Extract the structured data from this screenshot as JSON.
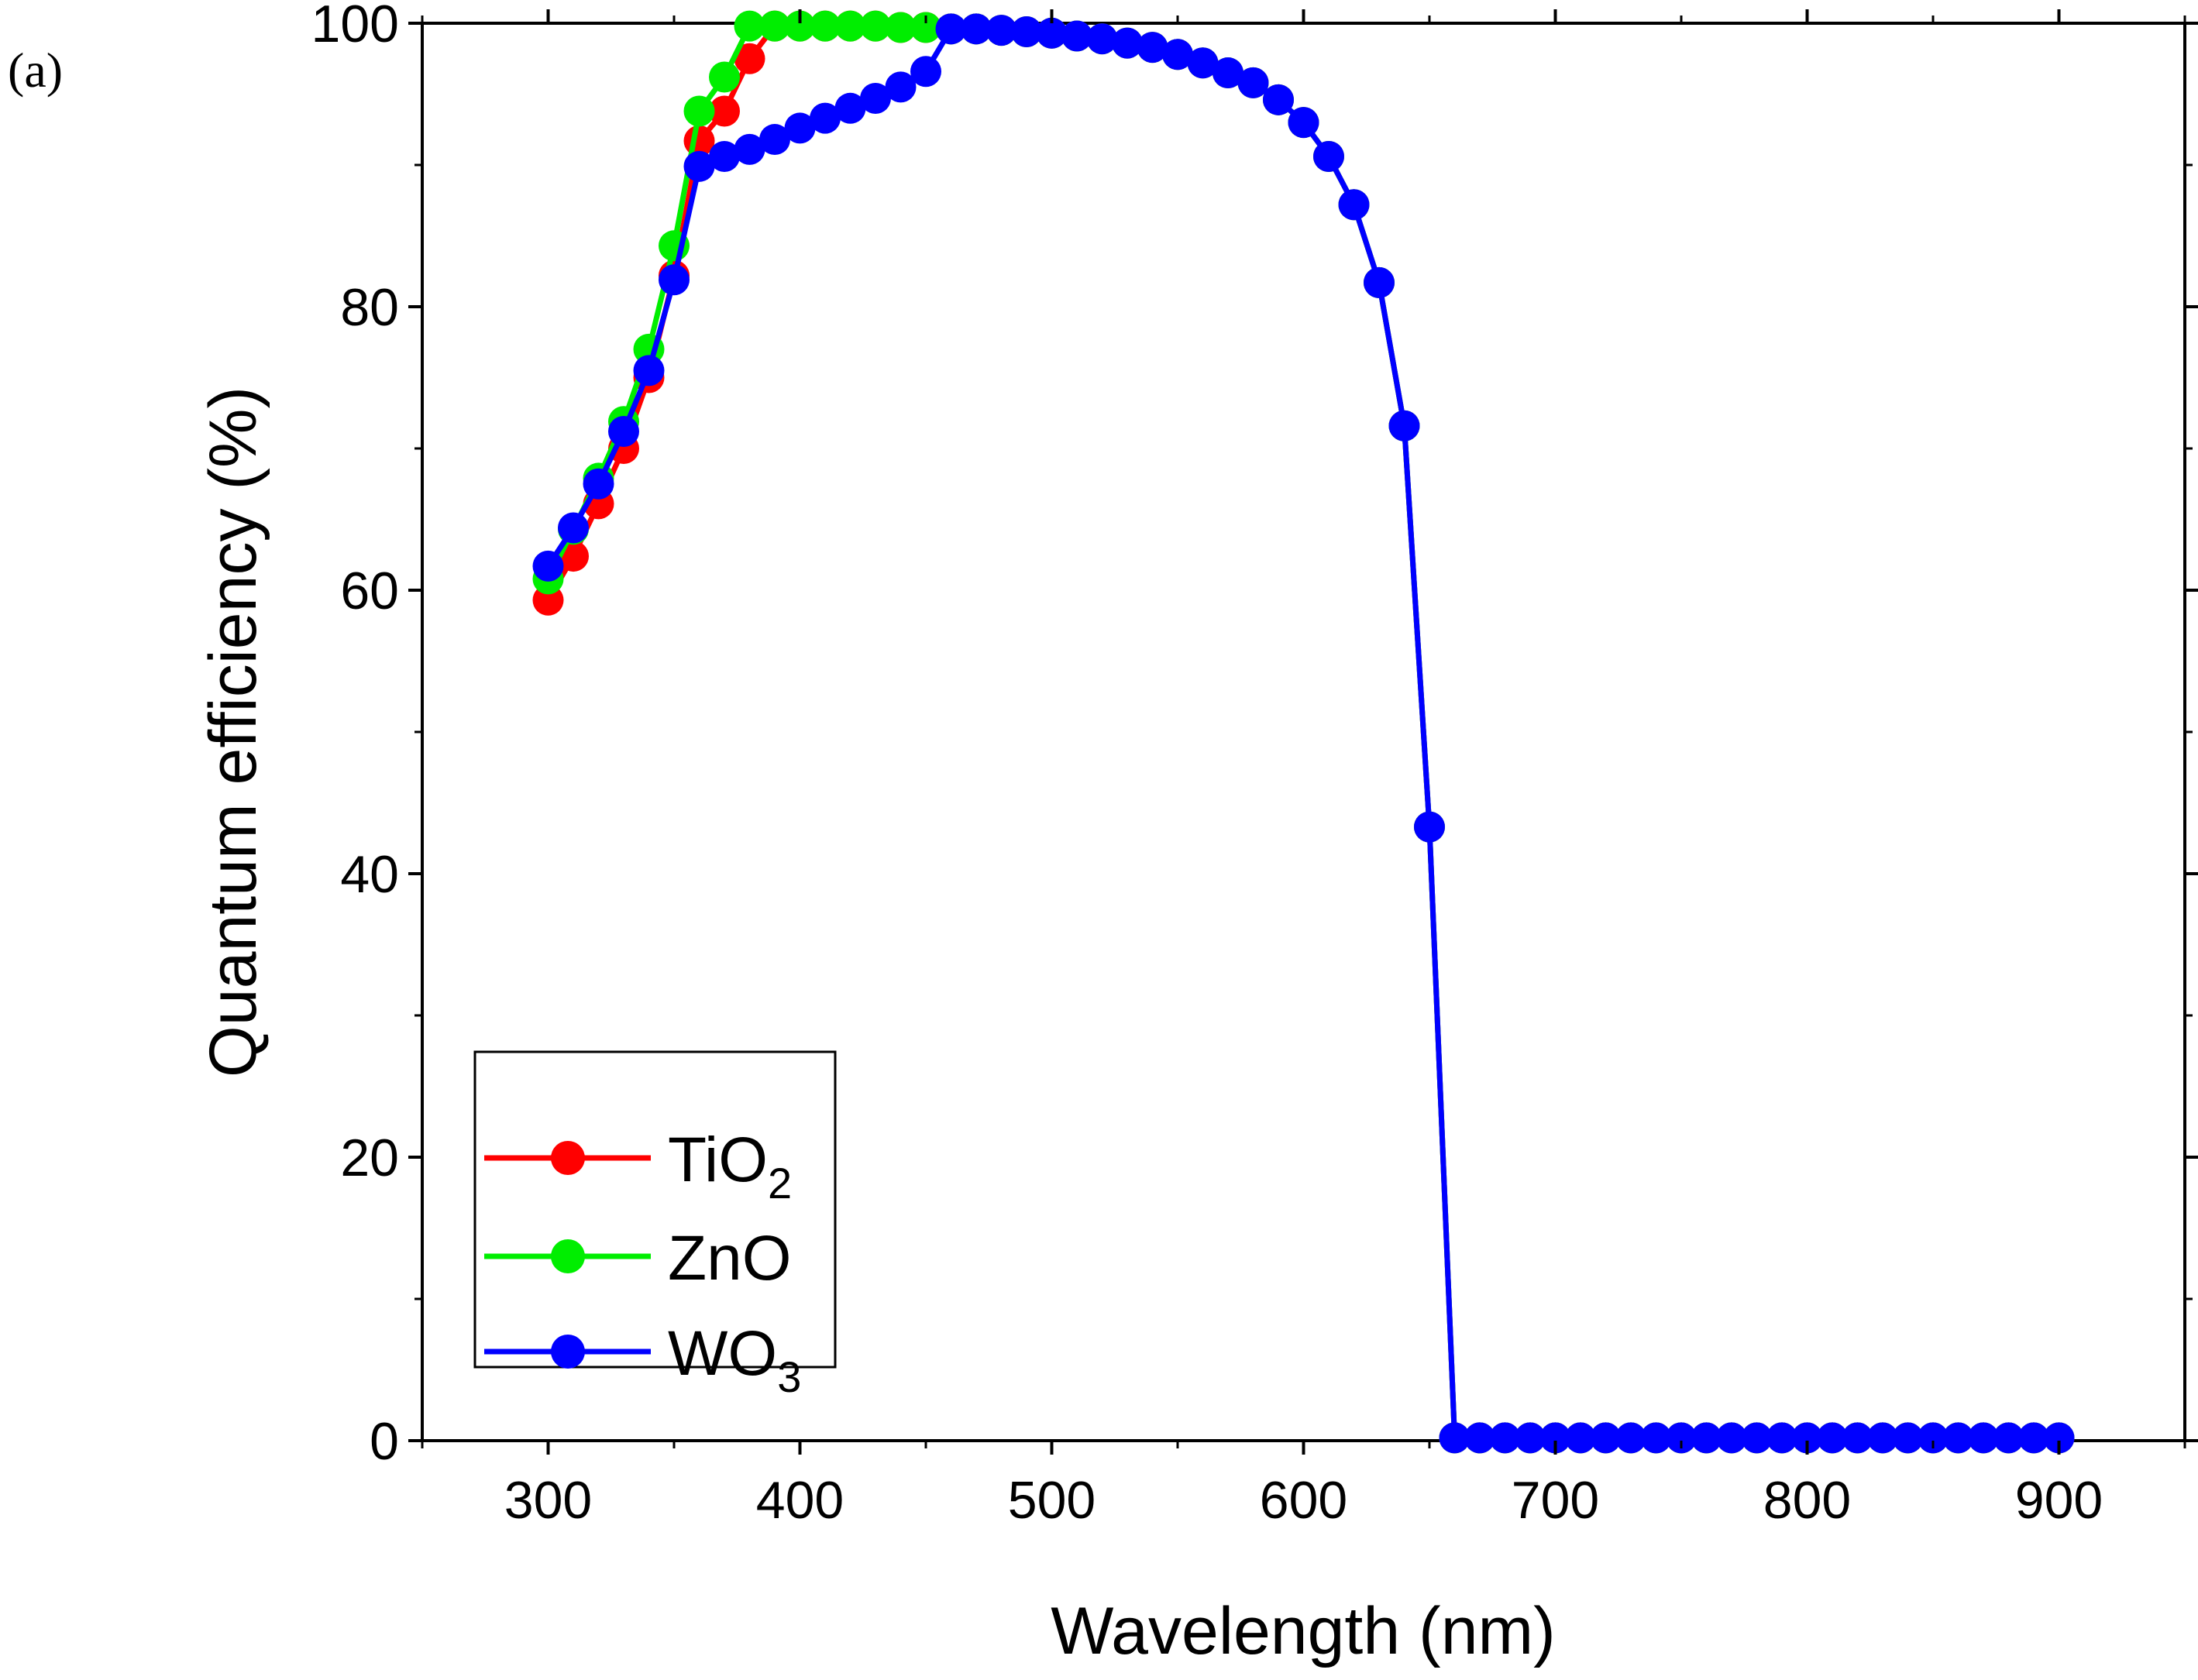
{
  "panel_label": "(a)",
  "chart_data": {
    "type": "line",
    "title": "",
    "xlabel": "Wavelength (nm)",
    "ylabel": "Quantum efficiency (%)",
    "xlim": [
      250,
      950
    ],
    "ylim": [
      0,
      100
    ],
    "xticks": [
      300,
      400,
      500,
      600,
      700,
      800,
      900
    ],
    "yticks": [
      0,
      20,
      40,
      60,
      80,
      100
    ],
    "grid": false,
    "legend_position": "bottom-left",
    "series": [
      {
        "name": "TiO2",
        "label_main": "TiO",
        "label_sub": "2",
        "color": "#ff0000",
        "x": [
          300,
          310,
          320,
          330,
          340,
          350,
          360,
          370,
          380,
          390,
          400,
          410,
          420,
          430,
          440,
          450,
          460,
          470,
          480,
          490,
          500,
          510,
          520,
          530,
          540,
          550,
          560,
          570,
          580,
          590,
          600,
          610,
          620,
          630,
          640,
          650,
          660,
          670,
          680,
          690,
          700,
          710,
          720,
          730,
          740,
          750,
          760,
          770,
          780,
          790,
          800,
          810,
          820,
          830,
          840,
          850,
          860,
          870,
          880,
          890,
          900
        ],
        "y": [
          59.3,
          62.4,
          66.1,
          70.0,
          75.0,
          82.2,
          91.7,
          93.8,
          97.5,
          99.8,
          99.8,
          99.8,
          99.8,
          99.8,
          99.7,
          99.7,
          99.6,
          99.6,
          99.5,
          99.4,
          99.3,
          99.1,
          98.9,
          98.6,
          98.3,
          97.8,
          97.2,
          96.5,
          95.8,
          94.6,
          93.0,
          90.6,
          87.2,
          81.7,
          71.6,
          43.3,
          0.2,
          0.2,
          0.2,
          0.2,
          0.2,
          0.2,
          0.2,
          0.2,
          0.2,
          0.2,
          0.2,
          0.2,
          0.2,
          0.2,
          0.2,
          0.2,
          0.2,
          0.2,
          0.2,
          0.2,
          0.2,
          0.2,
          0.2,
          0.2,
          0.2
        ]
      },
      {
        "name": "ZnO",
        "label_main": "ZnO",
        "label_sub": "",
        "color": "#00ee00",
        "x": [
          300,
          310,
          320,
          330,
          340,
          350,
          360,
          370,
          380,
          390,
          400,
          410,
          420,
          430,
          440,
          450,
          460,
          470,
          480,
          490,
          500,
          510,
          520,
          530,
          540,
          550,
          560,
          570,
          580,
          590,
          600,
          610,
          620,
          630,
          640,
          650,
          660,
          670,
          680,
          690,
          700,
          710,
          720,
          730,
          740,
          750,
          760,
          770,
          780,
          790,
          800,
          810,
          820,
          830,
          840,
          850,
          860,
          870,
          880,
          890,
          900
        ],
        "y": [
          60.8,
          64.3,
          67.9,
          71.9,
          77.0,
          84.3,
          93.8,
          96.2,
          99.8,
          99.8,
          99.8,
          99.8,
          99.8,
          99.8,
          99.7,
          99.7,
          99.6,
          99.6,
          99.5,
          99.4,
          99.3,
          99.1,
          98.9,
          98.6,
          98.3,
          97.8,
          97.2,
          96.5,
          95.8,
          94.6,
          93.0,
          90.6,
          87.2,
          81.7,
          71.6,
          43.3,
          0.2,
          0.2,
          0.2,
          0.2,
          0.2,
          0.2,
          0.2,
          0.2,
          0.2,
          0.2,
          0.2,
          0.2,
          0.2,
          0.2,
          0.2,
          0.2,
          0.2,
          0.2,
          0.2,
          0.2,
          0.2,
          0.2,
          0.2,
          0.2,
          0.2
        ]
      },
      {
        "name": "WO3",
        "label_main": "WO",
        "label_sub": "3",
        "color": "#0000ff",
        "x": [
          300,
          310,
          320,
          330,
          340,
          350,
          360,
          370,
          380,
          390,
          400,
          410,
          420,
          430,
          440,
          450,
          460,
          470,
          480,
          490,
          500,
          510,
          520,
          530,
          540,
          550,
          560,
          570,
          580,
          590,
          600,
          610,
          620,
          630,
          640,
          650,
          660,
          670,
          680,
          690,
          700,
          710,
          720,
          730,
          740,
          750,
          760,
          770,
          780,
          790,
          800,
          810,
          820,
          830,
          840,
          850,
          860,
          870,
          880,
          890,
          900
        ],
        "y": [
          61.7,
          64.4,
          67.5,
          71.2,
          75.5,
          81.9,
          89.9,
          90.6,
          91.1,
          91.8,
          92.6,
          93.3,
          94.0,
          94.7,
          95.5,
          96.6,
          99.6,
          99.6,
          99.5,
          99.4,
          99.3,
          99.1,
          98.9,
          98.6,
          98.3,
          97.8,
          97.2,
          96.5,
          95.8,
          94.6,
          93.0,
          90.6,
          87.2,
          81.7,
          71.6,
          43.3,
          0.2,
          0.2,
          0.2,
          0.2,
          0.2,
          0.2,
          0.2,
          0.2,
          0.2,
          0.2,
          0.2,
          0.2,
          0.2,
          0.2,
          0.2,
          0.2,
          0.2,
          0.2,
          0.2,
          0.2,
          0.2,
          0.2,
          0.2,
          0.2,
          0.2
        ]
      }
    ]
  }
}
